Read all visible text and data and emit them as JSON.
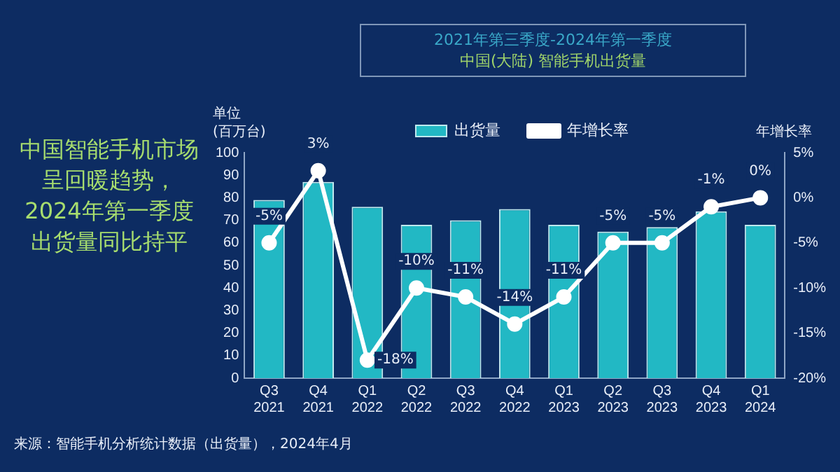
{
  "chart_data": {
    "type": "bar",
    "title": "2021年第三季度-2024年第一季度",
    "subtitle": "中国(大陆) 智能手机出货量",
    "ylabel": "单位 (百万台)",
    "y2label": "年增长率",
    "categories": [
      "Q3 2021",
      "Q4 2021",
      "Q1 2022",
      "Q2 2022",
      "Q3 2022",
      "Q4 2022",
      "Q1 2023",
      "Q2 2023",
      "Q3 2023",
      "Q4 2023",
      "Q1 2024"
    ],
    "series": [
      {
        "name": "出货量",
        "color": "#22b8c4",
        "values": [
          79,
          87,
          76,
          68,
          70,
          75,
          68,
          65,
          67,
          74,
          68
        ]
      },
      {
        "name": "年增长率",
        "type": "line",
        "axis": "y2",
        "color": "#ffffff",
        "marker": "circle",
        "values": [
          -5,
          3,
          -18,
          -10,
          -11,
          -14,
          -11,
          -5,
          -5,
          -1,
          0
        ],
        "value_labels": [
          "-5%",
          "3%",
          "-18%",
          "-10%",
          "-11%",
          "-14%",
          "-11%",
          "-5%",
          "-5%",
          "-1%",
          "0%"
        ]
      }
    ],
    "ylim": [
      0,
      100
    ],
    "yticks": [
      0,
      10,
      20,
      30,
      40,
      50,
      60,
      70,
      80,
      90,
      100
    ],
    "y2lim": [
      -20,
      5
    ],
    "y2ticks": [
      {
        "value": -20,
        "label": "-20%"
      },
      {
        "value": -15,
        "label": "-15%"
      },
      {
        "value": -10,
        "label": "-10%"
      },
      {
        "value": -5,
        "label": "-5%"
      },
      {
        "value": 0,
        "label": "0%"
      },
      {
        "value": 5,
        "label": "5%"
      }
    ],
    "legend": "top",
    "grid": false,
    "annotations": [
      "中国智能手机市场呈回暖趋势，2024年第一季度出货量同比持平",
      "来源：智能手机分析统计数据（出货量），2024年4月"
    ]
  }
}
